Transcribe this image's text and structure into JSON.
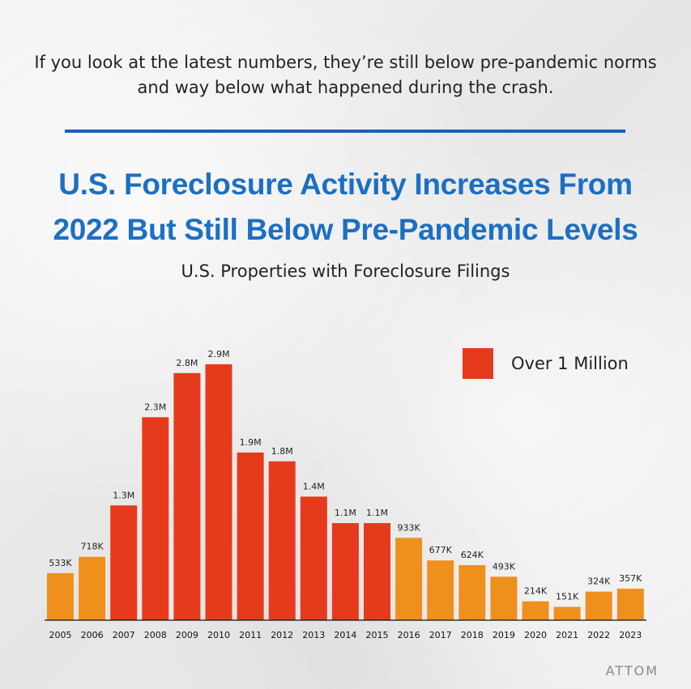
{
  "intro_text": "If you look at the latest numbers, they’re still below pre-pandemic norms and way below what happened during the crash.",
  "headline": {
    "line1": "U.S. Foreclosure Activity Increases From",
    "line2": "2022 But Still Below Pre-Pandemic Levels"
  },
  "source": "ATTOM",
  "colors": {
    "over_million": "#e63a1d",
    "under_million": "#f0901c",
    "headline": "#1c6fc3",
    "divider": "#1f5fae"
  },
  "chart_data": {
    "type": "bar",
    "title": "U.S. Properties with Foreclosure Filings",
    "xlabel": "",
    "ylabel": "",
    "categories": [
      "2005",
      "2006",
      "2007",
      "2008",
      "2009",
      "2010",
      "2011",
      "2012",
      "2013",
      "2014",
      "2015",
      "2016",
      "2017",
      "2018",
      "2019",
      "2020",
      "2021",
      "2022",
      "2023"
    ],
    "values": [
      533000,
      718000,
      1300000,
      2300000,
      2800000,
      2900000,
      1900000,
      1800000,
      1400000,
      1100000,
      1100000,
      933000,
      677000,
      624000,
      493000,
      214000,
      151000,
      324000,
      357000
    ],
    "data_labels": [
      "533K",
      "718K",
      "1.3M",
      "2.3M",
      "2.8M",
      "2.9M",
      "1.9M",
      "1.8M",
      "1.4M",
      "1.1M",
      "1.1M",
      "933K",
      "677K",
      "624K",
      "493K",
      "214K",
      "151K",
      "324K",
      "357K"
    ],
    "over_million": [
      false,
      false,
      true,
      true,
      true,
      true,
      true,
      true,
      true,
      true,
      true,
      false,
      false,
      false,
      false,
      false,
      false,
      false,
      false
    ],
    "ylim": [
      0,
      3000000
    ],
    "grid": false,
    "legend": {
      "position": "top-right",
      "entries": [
        "Over 1 Million"
      ]
    }
  }
}
